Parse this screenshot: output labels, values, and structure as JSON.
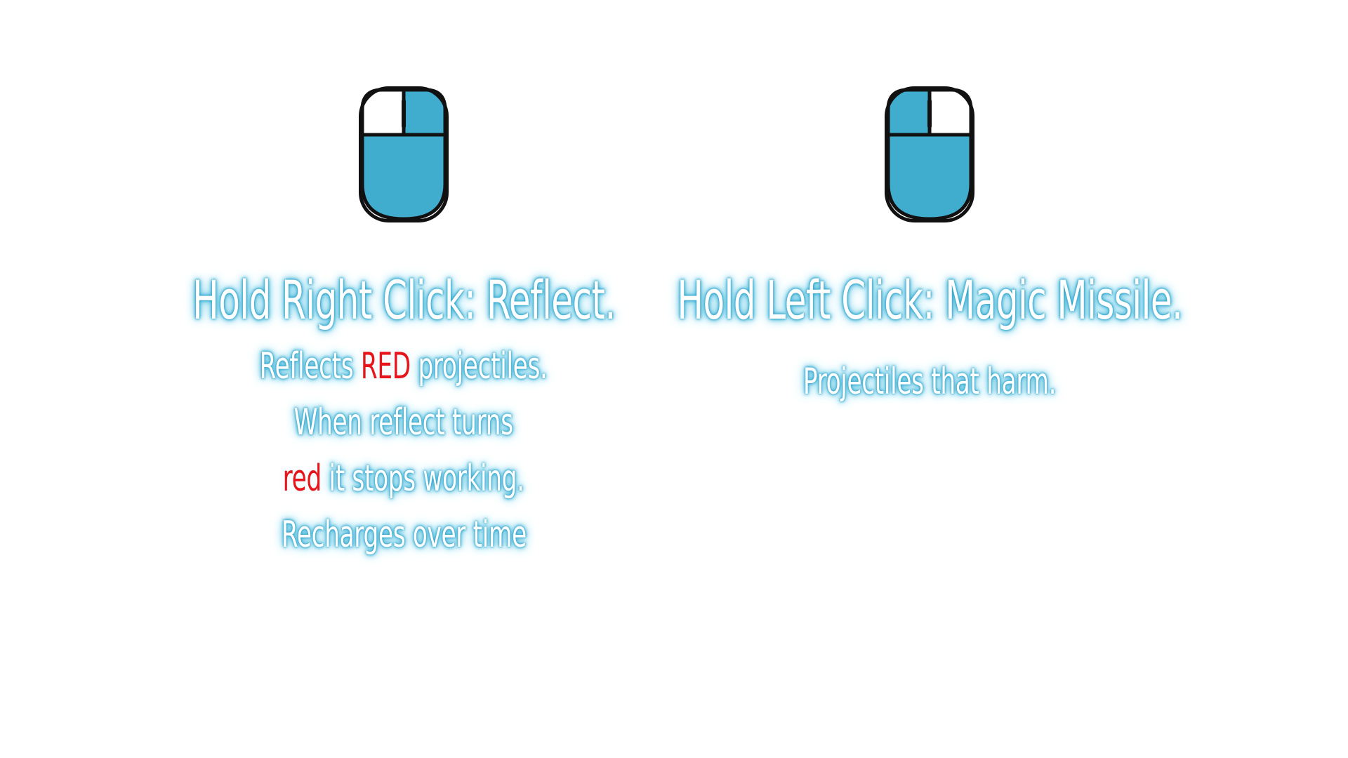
{
  "colors": {
    "mouse_fill": "#40adcf",
    "mouse_outline": "#111111",
    "glow": "#2ba0c7",
    "highlight_red": "#e8141b"
  },
  "controls": [
    {
      "icon": "mouse-right-click-icon",
      "highlighted_button": "right",
      "title": "Hold Right Click: Reflect.",
      "lines": [
        {
          "pre": "Reflects ",
          "highlight": "RED",
          "post": " projectiles."
        },
        {
          "pre": "When reflect turns",
          "highlight": "",
          "post": ""
        },
        {
          "pre": "",
          "highlight": "red",
          "post": " it stops working."
        },
        {
          "pre": "Recharges over time",
          "highlight": "",
          "post": ""
        }
      ]
    },
    {
      "icon": "mouse-left-click-icon",
      "highlighted_button": "left",
      "title": "Hold Left Click: Magic Missile.",
      "lines": [
        {
          "pre": "Projectiles that harm.",
          "highlight": "",
          "post": ""
        }
      ]
    }
  ]
}
